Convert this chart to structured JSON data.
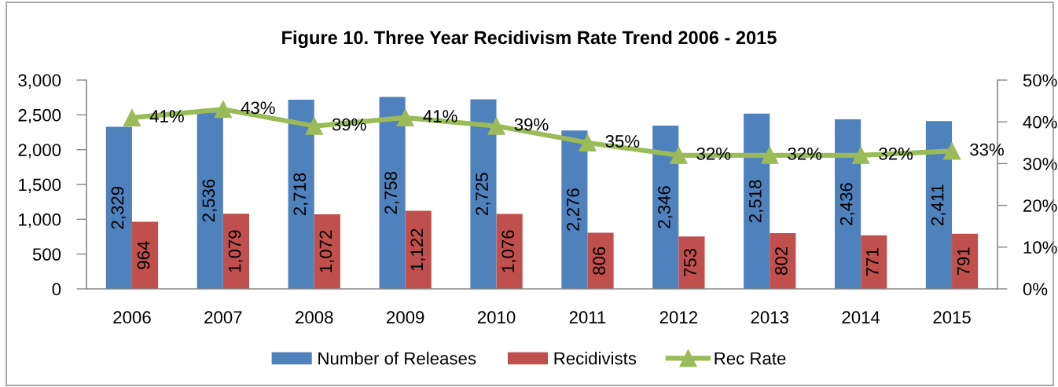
{
  "chart_data": {
    "type": "bar",
    "title": "Figure 10. Three Year Recidivism Rate Trend 2006 - 2015",
    "categories": [
      "2006",
      "2007",
      "2008",
      "2009",
      "2010",
      "2011",
      "2012",
      "2013",
      "2014",
      "2015"
    ],
    "series": [
      {
        "name": "Number of Releases",
        "color": "#4f81bd",
        "values": [
          2329,
          2536,
          2718,
          2758,
          2725,
          2276,
          2346,
          2518,
          2436,
          2411
        ],
        "value_labels": [
          "2,329",
          "2,536",
          "2,718",
          "2,758",
          "2,725",
          "2,276",
          "2,346",
          "2,518",
          "2,436",
          "2,411"
        ]
      },
      {
        "name": "Recidivists",
        "color": "#c0504d",
        "values": [
          964,
          1079,
          1072,
          1122,
          1076,
          806,
          753,
          802,
          771,
          791
        ],
        "value_labels": [
          "964",
          "1,079",
          "1,072",
          "1,122",
          "1,076",
          "806",
          "753",
          "802",
          "771",
          "791"
        ]
      },
      {
        "name": "Rec Rate",
        "type": "line",
        "axis": "y2",
        "color": "#9bbb59",
        "marker": "triangle",
        "line_style": "solid",
        "values": [
          41,
          43,
          39,
          41,
          39,
          35,
          32,
          32,
          32,
          33
        ],
        "value_labels": [
          "41%",
          "43%",
          "39%",
          "41%",
          "39%",
          "35%",
          "32%",
          "32%",
          "32%",
          "33%"
        ]
      }
    ],
    "ylim": [
      0,
      3000
    ],
    "yticks": [
      0,
      500,
      {
        "value": 1000,
        "label": "1,000"
      },
      {
        "value": 1500,
        "label": "1,500"
      },
      {
        "value": 2000,
        "label": "2,000"
      },
      {
        "value": 2500,
        "label": "2,500"
      },
      {
        "value": 3000,
        "label": "3,000"
      }
    ],
    "y2lim": [
      0,
      50
    ],
    "y2ticks": [
      {
        "value": 0,
        "label": "0%"
      },
      {
        "value": 10,
        "label": "10%"
      },
      {
        "value": 20,
        "label": "20%"
      },
      {
        "value": 30,
        "label": "30%"
      },
      {
        "value": 40,
        "label": "40%"
      },
      {
        "value": 50,
        "label": "50%"
      }
    ],
    "legend": "bottom",
    "grid": false
  }
}
